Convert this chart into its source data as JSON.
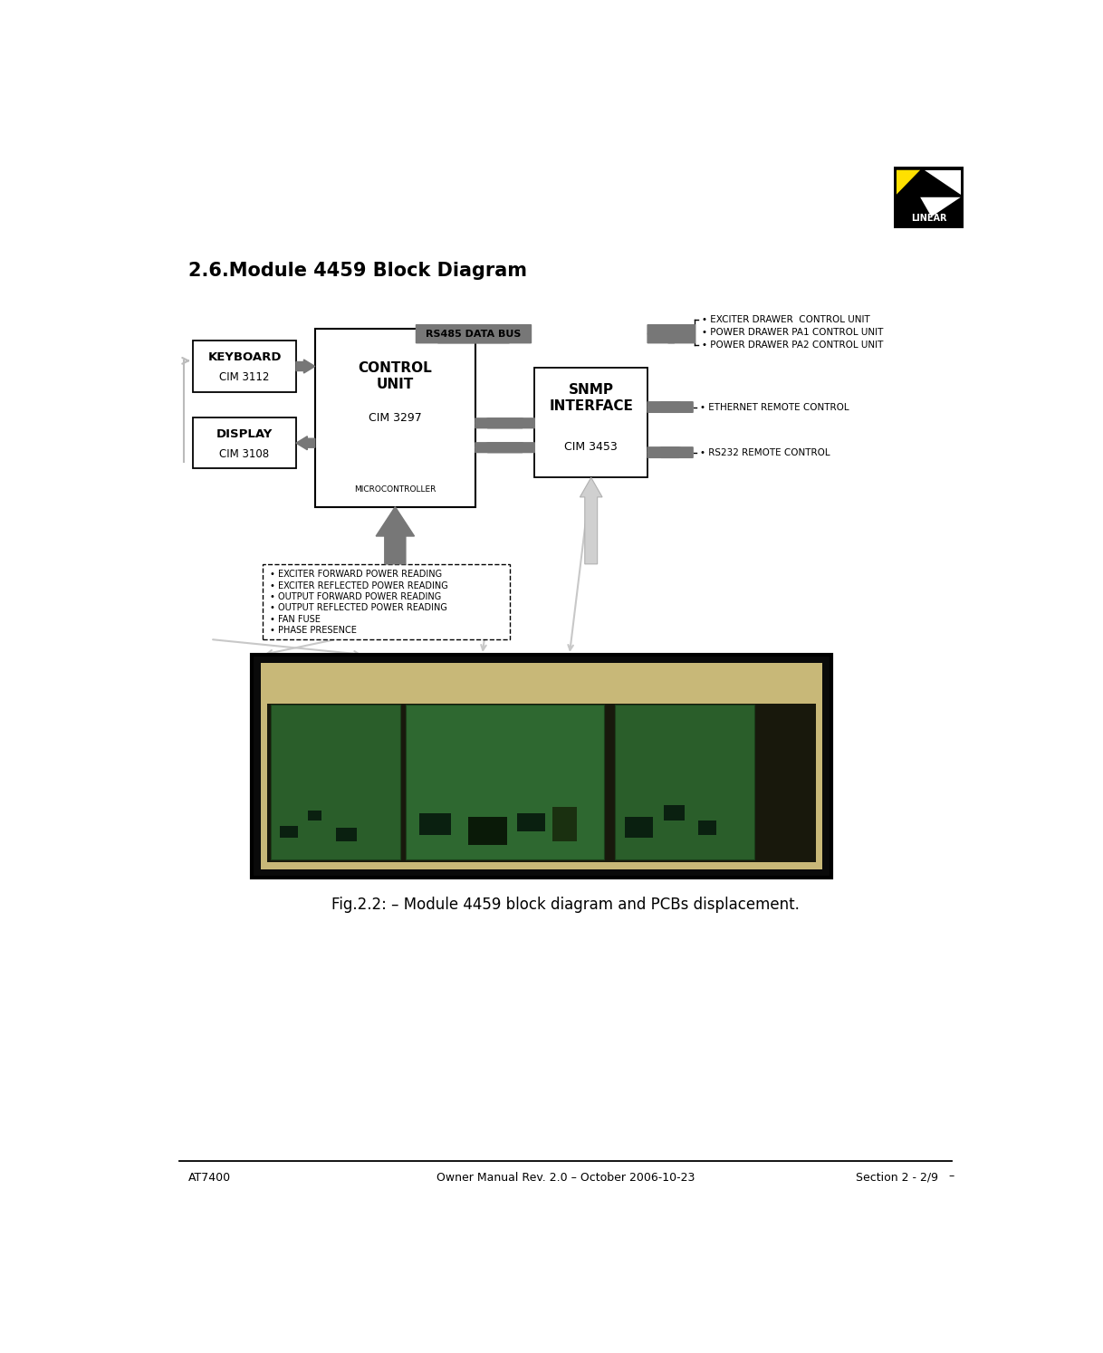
{
  "bg_color": "#ffffff",
  "title": "2.6.Module 4459 Block Diagram",
  "footer_left": "AT7400",
  "footer_center": "Owner Manual Rev. 2.0 – October 2006-10-23",
  "footer_right": "Section 2 - 2/9",
  "caption": "Fig.2.2: – Module 4459 block diagram and PCBs displacement.",
  "gc": "#777777",
  "lc": "#bbbbbb",
  "sensor_items": [
    "• EXCITER FORWARD POWER READING",
    "• EXCITER REFLECTED POWER READING",
    "• OUTPUT FORWARD POWER READING",
    "• OUTPUT REFLECTED POWER READING",
    "• FAN FUSE",
    "• PHASE PRESENCE"
  ],
  "rs485_items": [
    "• EXCITER DRAWER  CONTROL UNIT",
    "• POWER DRAWER PA1 CONTROL UNIT",
    "• POWER DRAWER PA2 CONTROL UNIT"
  ],
  "eth_label": "• ETHERNET REMOTE CONTROL",
  "rs232_label": "• RS232 REMOTE CONTROL"
}
